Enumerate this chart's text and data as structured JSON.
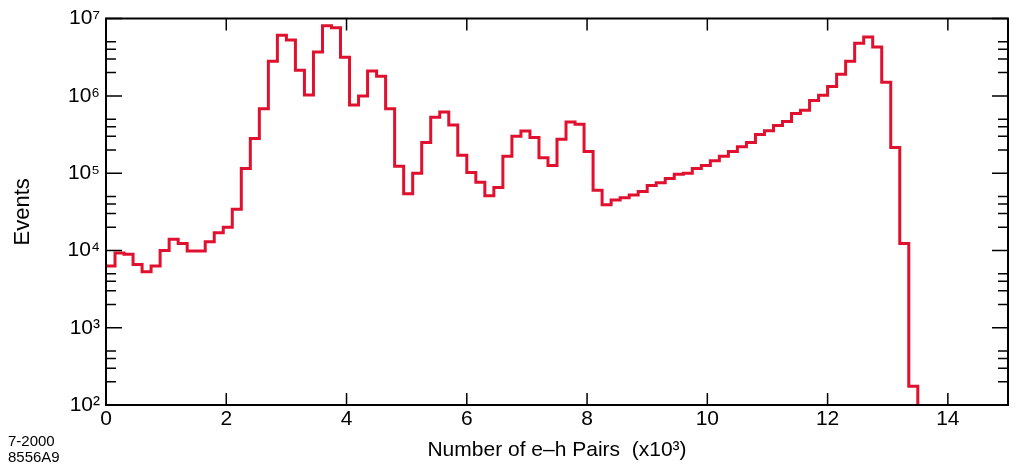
{
  "chart_data": {
    "type": "histogram",
    "xlabel": "Number of e–h Pairs  (x10³)",
    "ylabel": "Events",
    "annotations": [
      "7-2000",
      "8556A9"
    ],
    "color": "#e0102f",
    "bins": [
      0,
      0.15,
      0.3,
      0.45,
      0.6,
      0.75,
      0.9,
      1.05,
      1.2,
      1.35,
      1.5,
      1.65,
      1.8,
      1.95,
      2.1,
      2.25,
      2.4,
      2.55,
      2.7,
      2.85,
      3,
      3.15,
      3.3,
      3.45,
      3.6,
      3.75,
      3.9,
      4.05,
      4.2,
      4.35,
      4.5,
      4.65,
      4.8,
      4.95,
      5.1,
      5.25,
      5.4,
      5.55,
      5.7,
      5.85,
      6,
      6.15,
      6.3,
      6.45,
      6.6,
      6.75,
      6.9,
      7.05,
      7.2,
      7.35,
      7.5,
      7.65,
      7.8,
      7.95,
      8.1,
      8.25,
      8.4,
      8.55,
      8.7,
      8.85,
      9,
      9.15,
      9.3,
      9.45,
      9.6,
      9.75,
      9.9,
      10.05,
      10.2,
      10.35,
      10.5,
      10.65,
      10.8,
      10.95,
      11.1,
      11.25,
      11.4,
      11.55,
      11.7,
      11.85,
      12,
      12.15,
      12.3,
      12.45,
      12.6,
      12.75,
      12.9,
      13.05,
      13.2,
      13.35,
      13.5
    ],
    "values": [
      6300,
      9300,
      8900,
      6600,
      5300,
      6300,
      10000,
      14000,
      12300,
      9800,
      9800,
      13000,
      17000,
      20000,
      34000,
      115000,
      280000,
      680000,
      2800000,
      6100000,
      5300000,
      2150000,
      1030000,
      3700000,
      8100000,
      7600000,
      3150000,
      760000,
      1000000,
      2100000,
      1800000,
      680000,
      123000,
      54000,
      100000,
      250000,
      530000,
      620000,
      420000,
      170000,
      102000,
      76000,
      51000,
      65000,
      165000,
      300000,
      350000,
      290000,
      158000,
      126000,
      275000,
      460000,
      430000,
      190000,
      60000,
      39000,
      45000,
      48000,
      52000,
      58000,
      69000,
      75000,
      85000,
      97000,
      100000,
      115000,
      126000,
      145000,
      166000,
      190000,
      220000,
      250000,
      316000,
      355000,
      415000,
      465000,
      590000,
      650000,
      870000,
      1020000,
      1320000,
      1900000,
      2800000,
      4800000,
      5800000,
      4300000,
      1500000,
      215000,
      12300,
      175
    ],
    "log": "y",
    "grid": false,
    "tick_labels": "xy",
    "xlim": [
      0,
      15
    ],
    "xticks": [
      0,
      2,
      4,
      6,
      8,
      10,
      12,
      14
    ],
    "ylim": [
      100,
      10000000
    ],
    "yticks": [
      {
        "value": 100,
        "label": "10²"
      },
      {
        "value": 200,
        "label": null
      },
      {
        "value": 300,
        "label": null
      },
      {
        "value": 400,
        "label": null
      },
      {
        "value": 500,
        "label": null
      },
      {
        "value": 1000,
        "label": "10³"
      },
      {
        "value": 2000,
        "label": null
      },
      {
        "value": 3000,
        "label": null
      },
      {
        "value": 4000,
        "label": null
      },
      {
        "value": 5000,
        "label": null
      },
      {
        "value": 10000,
        "label": "10⁴"
      },
      {
        "value": 20000,
        "label": null
      },
      {
        "value": 30000,
        "label": null
      },
      {
        "value": 40000,
        "label": null
      },
      {
        "value": 50000,
        "label": null
      },
      {
        "value": 100000,
        "label": "10⁵"
      },
      {
        "value": 200000,
        "label": null
      },
      {
        "value": 300000,
        "label": null
      },
      {
        "value": 400000,
        "label": null
      },
      {
        "value": 500000,
        "label": null
      },
      {
        "value": 1000000,
        "label": "10⁶"
      },
      {
        "value": 2000000,
        "label": null
      },
      {
        "value": 3000000,
        "label": null
      },
      {
        "value": 4000000,
        "label": null
      },
      {
        "value": 5000000,
        "label": null
      },
      {
        "value": 10000000,
        "label": "10⁷"
      }
    ]
  }
}
